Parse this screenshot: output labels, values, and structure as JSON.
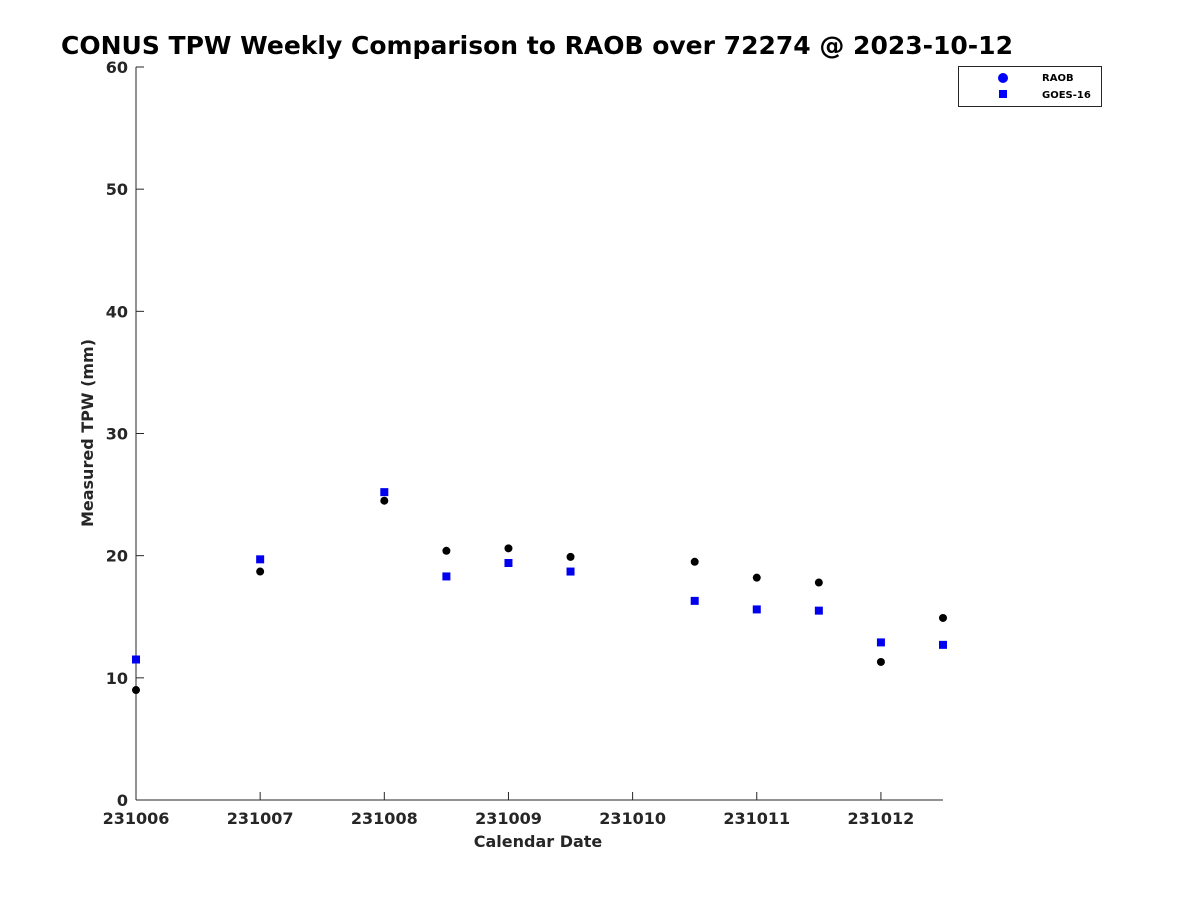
{
  "chart_data": {
    "type": "scatter",
    "title": "CONUS TPW Weekly Comparison to RAOB over 72274 @ 2023-10-12",
    "xlabel": "Calendar Date",
    "ylabel": "Measured TPW (mm)",
    "xlim": [
      0,
      6.5
    ],
    "ylim": [
      0,
      60
    ],
    "grid": false,
    "legend_position": "top-right",
    "x_ticks": [
      {
        "value": 0,
        "label": "231006"
      },
      {
        "value": 1,
        "label": "231007"
      },
      {
        "value": 2,
        "label": "231008"
      },
      {
        "value": 3,
        "label": "231009"
      },
      {
        "value": 4,
        "label": "231010"
      },
      {
        "value": 5,
        "label": "231011"
      },
      {
        "value": 6,
        "label": "231012"
      }
    ],
    "y_ticks": [
      0,
      10,
      20,
      30,
      40,
      50,
      60
    ],
    "series": [
      {
        "name": "RAOB",
        "marker": "circle",
        "color": "#000000",
        "legend_color": "#0000ff",
        "x": [
          0,
          1,
          2,
          2.5,
          3,
          3.5,
          4.5,
          5,
          5.5,
          6,
          6.5
        ],
        "y": [
          9.0,
          18.7,
          24.5,
          20.4,
          20.6,
          19.9,
          19.5,
          18.2,
          17.8,
          11.3,
          14.9
        ]
      },
      {
        "name": "GOES-16",
        "marker": "square",
        "color": "#0000ee",
        "legend_color": "#0000ff",
        "x": [
          0,
          1,
          2,
          2.5,
          3,
          3.5,
          4.5,
          5,
          5.5,
          6,
          6.5
        ],
        "y": [
          11.5,
          19.7,
          25.2,
          18.3,
          19.4,
          18.7,
          16.3,
          15.6,
          15.5,
          12.9,
          12.7
        ]
      }
    ]
  }
}
